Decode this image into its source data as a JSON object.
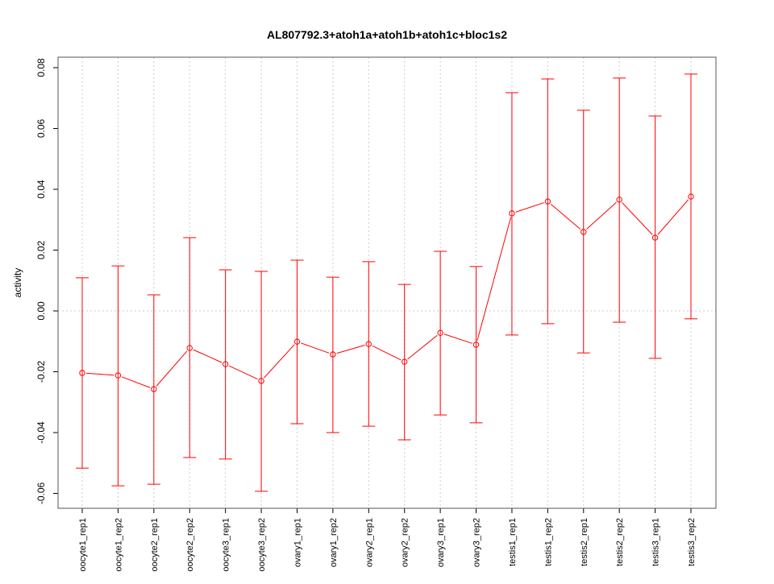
{
  "chart_data": {
    "type": "line",
    "title": "AL807792.3+atoh1a+atoh1b+atoh1c+bloc1s2",
    "xlabel": "",
    "ylabel": "activity",
    "ylim": [
      -0.06,
      0.08
    ],
    "yticks": [
      "-0.06",
      "-0.04",
      "-0.02",
      "0.00",
      "0.02",
      "0.04",
      "0.06",
      "0.08"
    ],
    "ytick_values": [
      -0.06,
      -0.04,
      -0.02,
      0.0,
      0.02,
      0.04,
      0.06,
      0.08
    ],
    "grid": true,
    "categories": [
      "oocyte1_rep1",
      "oocyte1_rep2",
      "oocyte2_rep1",
      "oocyte2_rep2",
      "oocyte3_rep1",
      "oocyte3_rep2",
      "ovary1_rep1",
      "ovary1_rep2",
      "ovary2_rep1",
      "ovary2_rep2",
      "ovary3_rep1",
      "ovary3_rep2",
      "testis1_rep1",
      "testis1_rep2",
      "testis2_rep1",
      "testis2_rep2",
      "testis3_rep1",
      "testis3_rep2"
    ],
    "series": [
      {
        "name": "activity",
        "color": "#ff0000",
        "values": [
          -0.0204,
          -0.0212,
          -0.0257,
          -0.0122,
          -0.0175,
          -0.023,
          -0.0101,
          -0.0143,
          -0.0109,
          -0.0167,
          -0.0072,
          -0.0111,
          0.0321,
          0.036,
          0.026,
          0.0366,
          0.0241,
          0.0376
        ],
        "upper": [
          0.0109,
          0.0148,
          0.0053,
          0.0241,
          0.0135,
          0.013,
          0.0167,
          0.0111,
          0.0162,
          0.0087,
          0.0196,
          0.0146,
          0.0718,
          0.0763,
          0.066,
          0.0766,
          0.0641,
          0.0779
        ],
        "lower": [
          -0.0517,
          -0.0575,
          -0.057,
          -0.0482,
          -0.0487,
          -0.0593,
          -0.0371,
          -0.04,
          -0.0379,
          -0.0424,
          -0.0342,
          -0.0368,
          -0.0079,
          -0.0042,
          -0.0138,
          -0.0037,
          -0.0156,
          -0.0026
        ]
      }
    ]
  }
}
